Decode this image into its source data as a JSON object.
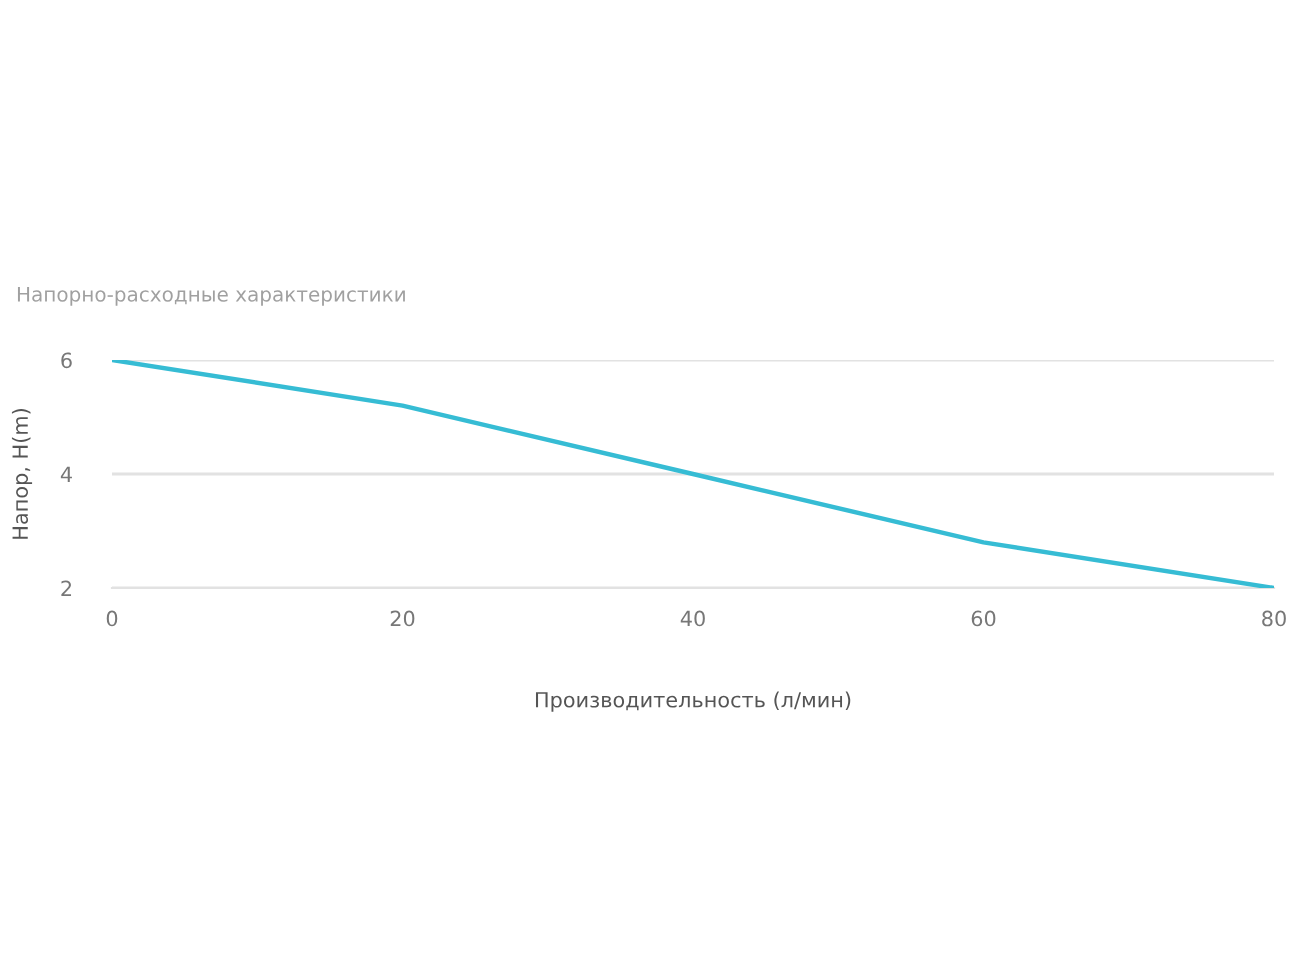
{
  "chart_data": {
    "type": "line",
    "title": "Напорно-расходные характеристики",
    "xlabel": "Производительность (л/мин)",
    "ylabel": "Напор, H(m)",
    "x": [
      0,
      20,
      40,
      60,
      80
    ],
    "series": [
      {
        "color": "#36bcd4",
        "values": [
          6,
          5.2,
          4.0,
          2.8,
          2.0
        ]
      }
    ],
    "xlim": [
      0,
      80
    ],
    "xticks": [
      0,
      20,
      40,
      60,
      80
    ],
    "ylim": [
      2,
      6
    ],
    "yticks": [
      2,
      4,
      6
    ],
    "grid": "y",
    "marker": "none",
    "line_style": "solid"
  }
}
